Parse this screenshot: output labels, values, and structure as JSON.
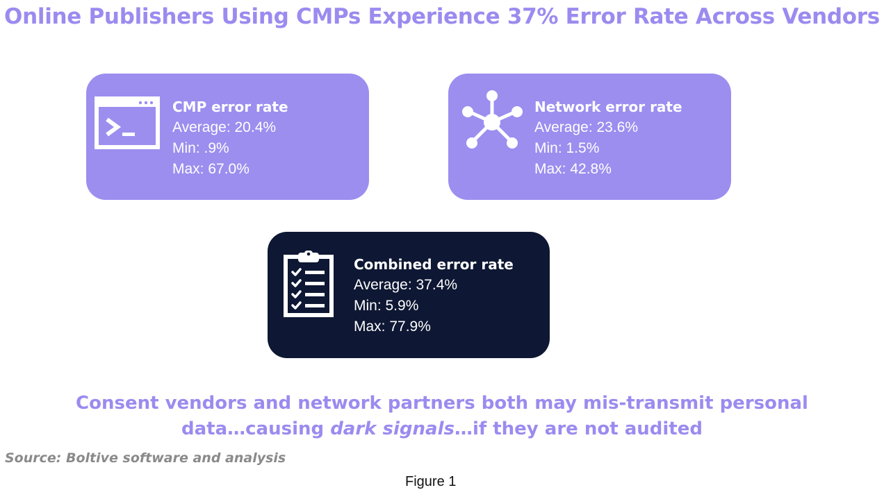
{
  "title": "Online Publishers Using CMPs Experience 37% Error Rate Across Vendors",
  "cards": {
    "cmp": {
      "icon": "terminal-window-icon",
      "heading": "CMP error rate",
      "average": "Average: 20.4%",
      "min": "Min: .9%",
      "max": "Max: 67.0%",
      "bg": "#9b8eef"
    },
    "network": {
      "icon": "network-hub-icon",
      "heading": "Network error rate",
      "average": "Average: 23.6%",
      "min": "Min: 1.5%",
      "max": "Max: 42.8%",
      "bg": "#9b8eef"
    },
    "combined": {
      "icon": "clipboard-checklist-icon",
      "heading": "Combined error rate",
      "average": "Average: 37.4%",
      "min": "Min: 5.9%",
      "max": "Max: 77.9%",
      "bg": "#0e1733"
    }
  },
  "tagline": {
    "line1": "Consent vendors and network partners both may mis-transmit personal",
    "line2_before": "data…causing ",
    "line2_emphasis": "dark signals",
    "line2_after": "…if they are not audited"
  },
  "source": "Source: Boltive software and analysis",
  "figure_caption": "Figure 1",
  "colors": {
    "accent": "#9b8bef",
    "dark_card": "#0e1733",
    "source_text": "#8a8a8a"
  }
}
